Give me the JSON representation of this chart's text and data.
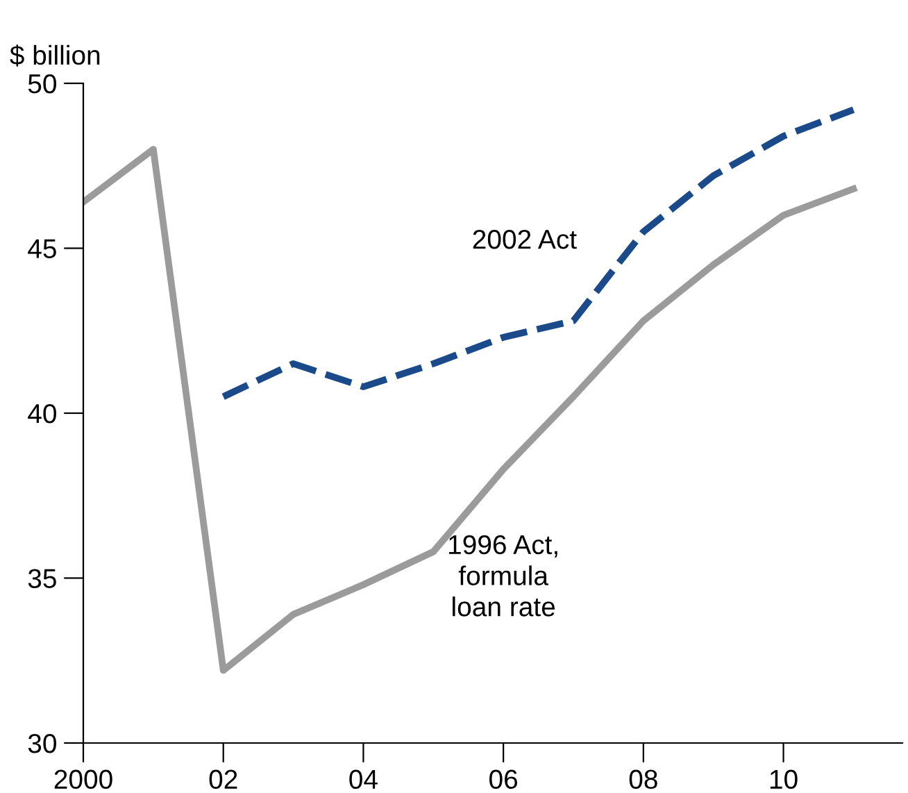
{
  "chart_data": {
    "type": "line",
    "ylabel": "$ billion",
    "x": [
      2000,
      2001,
      2002,
      2003,
      2004,
      2005,
      2006,
      2007,
      2008,
      2009,
      2010,
      2011
    ],
    "series": [
      {
        "name": "1996 Act, formula loan rate",
        "color": "#9b9b9b",
        "line_style": "solid",
        "values": [
          46.4,
          48.0,
          32.2,
          33.9,
          34.8,
          35.8,
          38.3,
          40.5,
          42.8,
          44.5,
          46.0,
          46.8
        ]
      },
      {
        "name": "2002 Act",
        "color": "#1b4a8a",
        "line_style": "dashed",
        "values": [
          null,
          null,
          40.5,
          41.5,
          40.8,
          41.5,
          42.3,
          42.8,
          45.5,
          47.2,
          48.4,
          49.2
        ]
      }
    ],
    "xlim": [
      2000,
      2011.7
    ],
    "ylim": [
      30,
      50
    ],
    "xticks": [
      {
        "value": 2000,
        "label": "2000"
      },
      {
        "value": 2002,
        "label": "02"
      },
      {
        "value": 2004,
        "label": "04"
      },
      {
        "value": 2006,
        "label": "06"
      },
      {
        "value": 2008,
        "label": "08"
      },
      {
        "value": 2010,
        "label": "10"
      }
    ],
    "yticks": [
      30,
      35,
      40,
      45,
      50
    ],
    "grid": false,
    "legend": false,
    "marker": "none"
  }
}
